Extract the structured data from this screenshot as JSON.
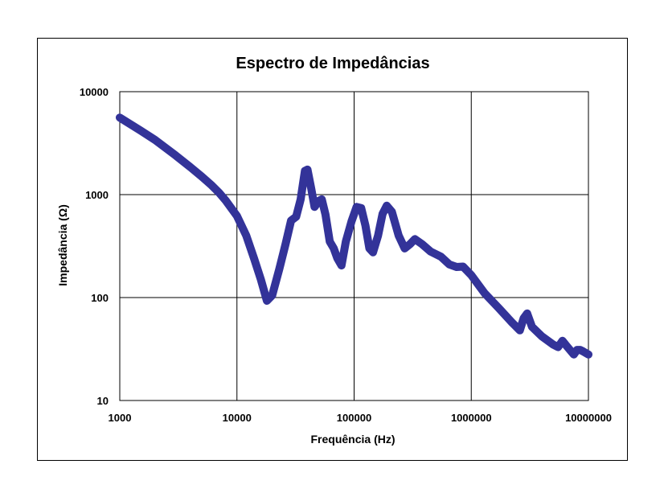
{
  "chart_data": {
    "type": "line",
    "title": "Espectro de Impedâncias",
    "xlabel": "Frequência (Hz)",
    "ylabel": "Impedância (Ω)",
    "x_scale": "log",
    "y_scale": "log",
    "xlim": [
      1000,
      10000000
    ],
    "ylim": [
      10,
      10000
    ],
    "x_ticks": [
      "1000",
      "10000",
      "100000",
      "1000000",
      "10000000"
    ],
    "y_ticks": [
      "10",
      "100",
      "1000",
      "10000"
    ],
    "grid": true,
    "legend": "none",
    "series": [
      {
        "color": "#333399",
        "points": [
          [
            1000,
            5600
          ],
          [
            1500,
            4200
          ],
          [
            2000,
            3400
          ],
          [
            3000,
            2400
          ],
          [
            4000,
            1850
          ],
          [
            5000,
            1500
          ],
          [
            6000,
            1250
          ],
          [
            7000,
            1050
          ],
          [
            8000,
            880
          ],
          [
            10000,
            620
          ],
          [
            12000,
            400
          ],
          [
            14000,
            240
          ],
          [
            16000,
            150
          ],
          [
            18000,
            93
          ],
          [
            20000,
            105
          ],
          [
            23000,
            190
          ],
          [
            26000,
            330
          ],
          [
            29000,
            560
          ],
          [
            32000,
            610
          ],
          [
            35000,
            900
          ],
          [
            38000,
            1700
          ],
          [
            40000,
            1750
          ],
          [
            43000,
            1150
          ],
          [
            46000,
            760
          ],
          [
            50000,
            870
          ],
          [
            53000,
            900
          ],
          [
            57000,
            640
          ],
          [
            62000,
            350
          ],
          [
            67000,
            300
          ],
          [
            72000,
            240
          ],
          [
            78000,
            205
          ],
          [
            85000,
            350
          ],
          [
            95000,
            550
          ],
          [
            105000,
            760
          ],
          [
            115000,
            740
          ],
          [
            125000,
            500
          ],
          [
            135000,
            300
          ],
          [
            145000,
            275
          ],
          [
            160000,
            400
          ],
          [
            175000,
            650
          ],
          [
            190000,
            780
          ],
          [
            210000,
            680
          ],
          [
            240000,
            400
          ],
          [
            270000,
            300
          ],
          [
            300000,
            330
          ],
          [
            330000,
            370
          ],
          [
            380000,
            330
          ],
          [
            450000,
            280
          ],
          [
            550000,
            250
          ],
          [
            650000,
            210
          ],
          [
            750000,
            198
          ],
          [
            850000,
            200
          ],
          [
            1000000,
            165
          ],
          [
            1300000,
            110
          ],
          [
            1700000,
            80
          ],
          [
            2200000,
            58
          ],
          [
            2600000,
            48
          ],
          [
            2800000,
            63
          ],
          [
            3000000,
            70
          ],
          [
            3300000,
            52
          ],
          [
            4000000,
            42
          ],
          [
            5000000,
            35
          ],
          [
            5500000,
            33
          ],
          [
            6000000,
            38
          ],
          [
            6500000,
            34
          ],
          [
            7500000,
            28
          ],
          [
            8000000,
            31
          ],
          [
            8500000,
            31
          ],
          [
            9000000,
            30
          ],
          [
            10000000,
            28
          ]
        ]
      }
    ]
  }
}
